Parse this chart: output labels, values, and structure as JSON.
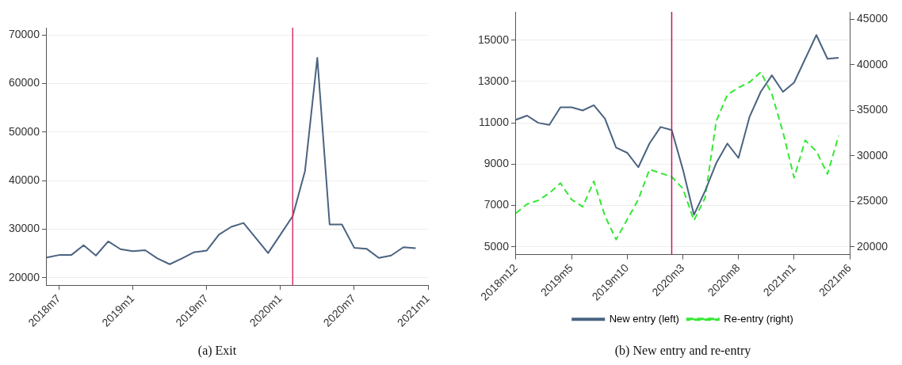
{
  "chart_data": [
    {
      "type": "line",
      "title": "(a) Exit",
      "x": [
        "2018-06",
        "2018-07",
        "2018-08",
        "2018-09",
        "2018-10",
        "2018-11",
        "2018-12",
        "2019-01",
        "2019-02",
        "2019-03",
        "2019-04",
        "2019-05",
        "2019-06",
        "2019-07",
        "2019-08",
        "2019-09",
        "2019-10",
        "2019-11",
        "2019-12",
        "2020-01",
        "2020-02",
        "2020-03",
        "2020-04",
        "2020-05",
        "2020-06",
        "2020-07",
        "2020-08",
        "2020-09",
        "2020-10",
        "2020-11",
        "2020-12"
      ],
      "series": [
        {
          "color": "#4a6380",
          "values": [
            24200,
            24700,
            24700,
            26700,
            24600,
            27500,
            25900,
            25500,
            25700,
            24000,
            22800,
            24000,
            25300,
            25600,
            28900,
            30500,
            31300,
            28200,
            25100,
            28900,
            32700,
            42000,
            65300,
            31000,
            31000,
            26200,
            26000,
            24100,
            24600,
            26300,
            26100
          ]
        }
      ],
      "xlim": [
        "2018-06",
        "2021-01"
      ],
      "xticks": [
        {
          "value": "2018-07",
          "label": "2018m7"
        },
        {
          "value": "2019-01",
          "label": "2019m1"
        },
        {
          "value": "2019-07",
          "label": "2019m7"
        },
        {
          "value": "2020-01",
          "label": "2020m1"
        },
        {
          "value": "2020-07",
          "label": "2020m7"
        },
        {
          "value": "2021-01",
          "label": "2021m1"
        }
      ],
      "ylim": [
        18500,
        71500
      ],
      "yticks": [
        20000,
        30000,
        40000,
        50000,
        60000,
        70000
      ],
      "grid": "y",
      "legend": false,
      "ref_lines": [
        {
          "axis": "x",
          "value": "2020-02",
          "color": "#d6336c"
        }
      ]
    },
    {
      "type": "line",
      "title": "(b) New entry and re-entry",
      "x": [
        "2018-12",
        "2019-01",
        "2019-02",
        "2019-03",
        "2019-04",
        "2019-05",
        "2019-06",
        "2019-07",
        "2019-08",
        "2019-09",
        "2019-10",
        "2019-11",
        "2019-12",
        "2020-01",
        "2020-02",
        "2020-03",
        "2020-04",
        "2020-05",
        "2020-06",
        "2020-07",
        "2020-08",
        "2020-09",
        "2020-10",
        "2020-11",
        "2020-12",
        "2021-01",
        "2021-02",
        "2021-03",
        "2021-04",
        "2021-05"
      ],
      "series": [
        {
          "name": "New entry (left)",
          "color": "#4a6380",
          "line_style": "solid",
          "values": [
            11150,
            11350,
            11000,
            10900,
            11750,
            11750,
            11600,
            11850,
            11200,
            9800,
            9550,
            8850,
            10000,
            10800,
            10650,
            8750,
            6550,
            7700,
            9050,
            10000,
            9300,
            11300,
            12500,
            13300,
            12500,
            12950,
            14100,
            15250,
            14100,
            14150
          ]
        },
        {
          "name": "Re-entry (right)",
          "color": "#33e833",
          "line_style": "dashed",
          "axis": "y2",
          "values": [
            23700,
            24700,
            25100,
            25900,
            27000,
            25200,
            24400,
            27200,
            23400,
            20800,
            23000,
            25200,
            28500,
            28100,
            27700,
            26400,
            22900,
            25400,
            33800,
            36700,
            37500,
            38100,
            39200,
            36800,
            32600,
            27600,
            31700,
            30500,
            28000,
            32200
          ]
        }
      ],
      "xlim": [
        "2018-12",
        "2021-06"
      ],
      "xticks": [
        {
          "value": "2018-12",
          "label": "2018m12"
        },
        {
          "value": "2019-05",
          "label": "2019m5"
        },
        {
          "value": "2019-10",
          "label": "2019m10"
        },
        {
          "value": "2020-03",
          "label": "2020m3"
        },
        {
          "value": "2020-08",
          "label": "2020m8"
        },
        {
          "value": "2021-01",
          "label": "2021m1"
        },
        {
          "value": "2021-06",
          "label": "2021m6"
        }
      ],
      "ylim": [
        4620,
        16370
      ],
      "yticks": [
        5000,
        7000,
        9000,
        11000,
        13000,
        15000
      ],
      "y2lim": [
        19140,
        45820
      ],
      "y2ticks": [
        20000,
        25000,
        30000,
        35000,
        40000,
        45000
      ],
      "grid": "y",
      "legend": "bottom",
      "ref_lines": [
        {
          "axis": "x",
          "value": "2020-02",
          "color": "#c2185b"
        }
      ]
    }
  ]
}
